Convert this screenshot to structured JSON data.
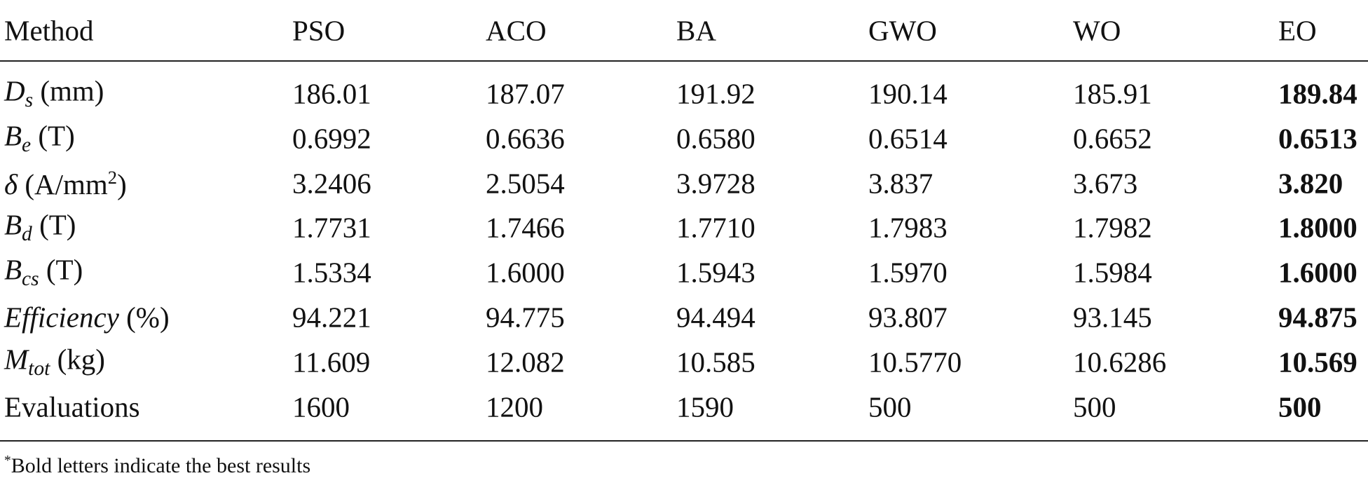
{
  "table": {
    "columns": [
      "Method",
      "PSO",
      "ACO",
      "BA",
      "GWO",
      "WO",
      "EO"
    ],
    "best_column_index": 6,
    "rows": [
      {
        "label": [
          {
            "text": "D",
            "style": "italic"
          },
          {
            "text": "s",
            "style": "italic-sub"
          },
          {
            "text": " (mm)"
          }
        ],
        "cells": [
          "186.01",
          "187.07",
          "191.92",
          "190.14",
          "185.91",
          "189.84"
        ]
      },
      {
        "label": [
          {
            "text": "B",
            "style": "italic"
          },
          {
            "text": "e",
            "style": "italic-sub"
          },
          {
            "text": " (T)"
          }
        ],
        "cells": [
          "0.6992",
          "0.6636",
          "0.6580",
          "0.6514",
          "0.6652",
          "0.6513"
        ]
      },
      {
        "label": [
          {
            "text": "δ",
            "style": "italic"
          },
          {
            "text": " (A/mm"
          },
          {
            "text": "2",
            "style": "sup"
          },
          {
            "text": ")"
          }
        ],
        "cells": [
          "3.2406",
          "2.5054",
          "3.9728",
          "3.837",
          "3.673",
          "3.820"
        ]
      },
      {
        "label": [
          {
            "text": "B",
            "style": "italic"
          },
          {
            "text": "d",
            "style": "italic-sub"
          },
          {
            "text": " (T)"
          }
        ],
        "cells": [
          "1.7731",
          "1.7466",
          "1.7710",
          "1.7983",
          "1.7982",
          "1.8000"
        ]
      },
      {
        "label": [
          {
            "text": "B",
            "style": "italic"
          },
          {
            "text": "cs",
            "style": "italic-sub"
          },
          {
            "text": " (T)"
          }
        ],
        "cells": [
          "1.5334",
          "1.6000",
          "1.5943",
          "1.5970",
          "1.5984",
          "1.6000"
        ]
      },
      {
        "label": [
          {
            "text": "Efficiency",
            "style": "italic"
          },
          {
            "text": " (%)"
          }
        ],
        "cells": [
          "94.221",
          "94.775",
          "94.494",
          "93.807",
          "93.145",
          "94.875"
        ]
      },
      {
        "label": [
          {
            "text": "M",
            "style": "italic"
          },
          {
            "text": "tot",
            "style": "italic-sub"
          },
          {
            "text": " (kg)"
          }
        ],
        "cells": [
          "11.609",
          "12.082",
          "10.585",
          "10.5770",
          "10.6286",
          "10.569"
        ]
      },
      {
        "label": [
          {
            "text": "Evaluations"
          }
        ],
        "cells": [
          "1600",
          "1200",
          "1590",
          "500",
          "500",
          "500"
        ]
      }
    ],
    "footnote": [
      {
        "text": "*",
        "style": "sup"
      },
      {
        "text": "Bold letters indicate the best results"
      }
    ]
  }
}
